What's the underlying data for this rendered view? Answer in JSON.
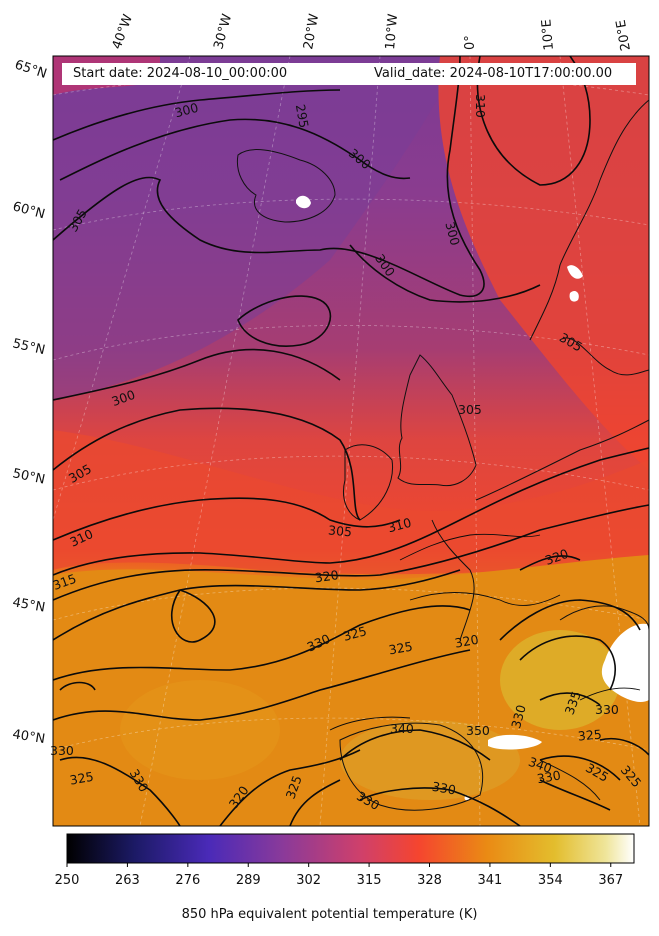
{
  "header": {
    "start_date": "Start date: 2024-08-10_00:00:00",
    "valid_date": "Valid_date: 2024-08-10T17:00:00.00"
  },
  "longitude_labels": [
    "40°W",
    "30°W",
    "20°W",
    "10°W",
    "0°",
    "10°E",
    "20°E"
  ],
  "latitude_labels": [
    "65°N",
    "60°N",
    "55°N",
    "50°N",
    "45°N",
    "40°N"
  ],
  "contour_labels": [
    "295",
    "300",
    "300",
    "300",
    "300",
    "305",
    "300",
    "305",
    "310",
    "305",
    "305",
    "305",
    "310",
    "310",
    "315",
    "320",
    "320",
    "325",
    "325",
    "330",
    "330",
    "325",
    "330",
    "320",
    "320",
    "325",
    "330",
    "335",
    "330",
    "340",
    "350",
    "340",
    "330",
    "330",
    "325",
    "325",
    "325",
    "330"
  ],
  "colorbar": {
    "title": "850 hPa equivalent potential temperature (K)",
    "ticks": [
      "250",
      "263",
      "276",
      "289",
      "302",
      "315",
      "328",
      "341",
      "354",
      "367"
    ],
    "range": [
      250,
      372
    ],
    "colormap": "CMRmap"
  },
  "colors": {
    "cold": "#6b3a99",
    "mid": "#b43c6a",
    "warm": "#f0432e",
    "hot": "#e38a12",
    "hottest": "#e0b52a"
  }
}
